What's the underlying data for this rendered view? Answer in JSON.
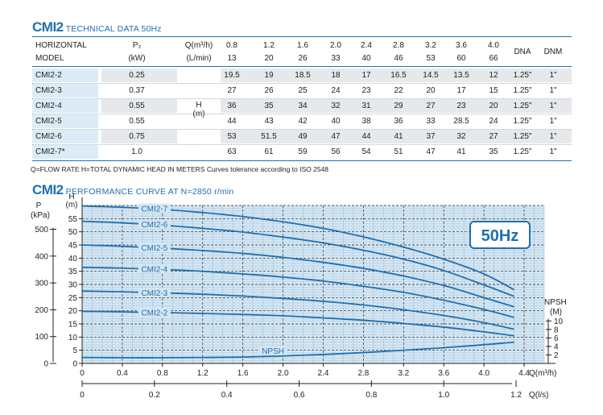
{
  "table": {
    "title_main": "CMI2",
    "title_sub": "TECHNICAL DATA 50Hz",
    "header": {
      "col1": [
        "HORIZONTAL",
        "MODEL"
      ],
      "power_label": "P₂",
      "power_unit": "(kW)",
      "q_label": "Q(m³/h)",
      "q_unit": "(L/min)",
      "flow_m3h": [
        "0.8",
        "1.2",
        "1.6",
        "2.0",
        "2.4",
        "2.8",
        "3.2",
        "3.6",
        "4.0"
      ],
      "flow_lmin": [
        "13",
        "20",
        "26",
        "33",
        "40",
        "46",
        "53",
        "60",
        "66"
      ],
      "dna": "DNA",
      "dnm": "DNM"
    },
    "head_label": "H",
    "head_unit": "(m)",
    "rows": [
      {
        "model": "CMI2-2",
        "power": "0.25",
        "heads": [
          "19.5",
          "19",
          "18.5",
          "18",
          "17",
          "16.5",
          "14.5",
          "13.5",
          "12"
        ],
        "dna": "1.25\"",
        "dnm": "1\""
      },
      {
        "model": "CMI2-3",
        "power": "0.37",
        "heads": [
          "27",
          "26",
          "25",
          "24",
          "23",
          "22",
          "20",
          "17",
          "15"
        ],
        "dna": "1.25\"",
        "dnm": "1\""
      },
      {
        "model": "CMI2-4",
        "power": "0.55",
        "heads": [
          "36",
          "35",
          "34",
          "32",
          "31",
          "29",
          "27",
          "23",
          "20"
        ],
        "dna": "1.25\"",
        "dnm": "1\""
      },
      {
        "model": "CMI2-5",
        "power": "0.55",
        "heads": [
          "44",
          "43",
          "42",
          "40",
          "38",
          "36",
          "33",
          "28.5",
          "24"
        ],
        "dna": "1.25\"",
        "dnm": "1\""
      },
      {
        "model": "CMI2-6",
        "power": "0.75",
        "heads": [
          "53",
          "51.5",
          "49",
          "47",
          "44",
          "41",
          "37",
          "32",
          "27"
        ],
        "dna": "1.25\"",
        "dnm": "1\""
      },
      {
        "model": "CMI2-7*",
        "power": "1.0",
        "heads": [
          "63",
          "61",
          "59",
          "56",
          "54",
          "51",
          "47",
          "41",
          "35"
        ],
        "dna": "1.25\"",
        "dnm": "1\""
      }
    ],
    "footnote": "Q=FLOW RATE H=TOTAL DYNAMIC HEAD IN METERS  Curves tolerance according to ISO 2548"
  },
  "chart_title_main": "CMI2",
  "chart_title_sub": "PERFORMANCE CURVE AT N=2850  r/min",
  "badge": "50Hz",
  "colors": {
    "accent": "#1f6fb0",
    "grid_fill": "#d3e6f3",
    "curve": "#1f6fb0",
    "table_stripe": "#e7e8ea",
    "model_cell": "#dcecf7"
  },
  "chart_data": {
    "type": "line",
    "title": "PERFORMANCE CURVE AT N=2850  r/min",
    "xlabel": "Q(m³/h)",
    "xlabel2": "Q(l/s)",
    "ylabel_head": "H",
    "ylabel_head_unit": "(m)",
    "ylabel_pressure": "P",
    "ylabel_pressure_unit": "(kPa)",
    "ylabel_npsh": "NPSH",
    "ylabel_npsh_unit": "(M)",
    "xlim": [
      0,
      4.6
    ],
    "ylim": [
      0,
      60
    ],
    "x_ticks": [
      "0",
      "0.4",
      "0.8",
      "1.2",
      "1.6",
      "2.0",
      "2.4",
      "2.8",
      "3.2",
      "3.6",
      "4.0",
      "4.4"
    ],
    "x_ticks_ls": [
      "0",
      "0.2",
      "0.4",
      "0.6",
      "0.8",
      "1.0",
      "1.2"
    ],
    "y_ticks_head": [
      "0",
      "5",
      "10",
      "15",
      "20",
      "25",
      "30",
      "35",
      "40",
      "45",
      "50",
      "55"
    ],
    "y_ticks_pressure": [
      "0",
      "100",
      "200",
      "300",
      "400",
      "500"
    ],
    "y_ticks_npsh": [
      "2",
      "4",
      "6",
      "8",
      "10"
    ],
    "x": [
      0,
      0.4,
      0.8,
      1.2,
      1.6,
      2.0,
      2.4,
      2.8,
      3.2,
      3.6,
      4.0,
      4.3
    ],
    "series": [
      {
        "name": "CMI2-2",
        "values": [
          19.8,
          19.6,
          19.3,
          19.0,
          18.6,
          18.1,
          17.3,
          16.4,
          15.2,
          13.8,
          12.0,
          10.5
        ]
      },
      {
        "name": "CMI2-3",
        "values": [
          27.5,
          27.2,
          26.8,
          26.3,
          25.6,
          24.7,
          23.6,
          22.2,
          20.4,
          18.2,
          15.5,
          13.0
        ]
      },
      {
        "name": "CMI2-4",
        "values": [
          36.5,
          36.2,
          35.7,
          35.0,
          34.0,
          32.8,
          31.3,
          29.3,
          27.0,
          24.0,
          20.5,
          17.5
        ]
      },
      {
        "name": "CMI2-5",
        "values": [
          45.0,
          44.5,
          43.8,
          42.9,
          41.8,
          40.3,
          38.4,
          36.1,
          33.2,
          29.6,
          25.0,
          21.5
        ]
      },
      {
        "name": "CMI2-6",
        "values": [
          54.0,
          53.4,
          52.5,
          51.3,
          49.9,
          48.0,
          45.8,
          43.0,
          39.6,
          35.3,
          29.8,
          25.5
        ]
      },
      {
        "name": "CMI2-7",
        "values": [
          59.8,
          59.3,
          58.5,
          57.3,
          55.8,
          53.8,
          51.3,
          48.1,
          44.2,
          39.6,
          34.0,
          28.0
        ]
      },
      {
        "name": "NPSH",
        "axis": "npsh",
        "values": [
          1.4,
          1.35,
          1.35,
          1.4,
          1.5,
          1.75,
          2.1,
          2.55,
          3.1,
          3.7,
          4.4,
          5.0
        ]
      }
    ],
    "grid": true
  }
}
